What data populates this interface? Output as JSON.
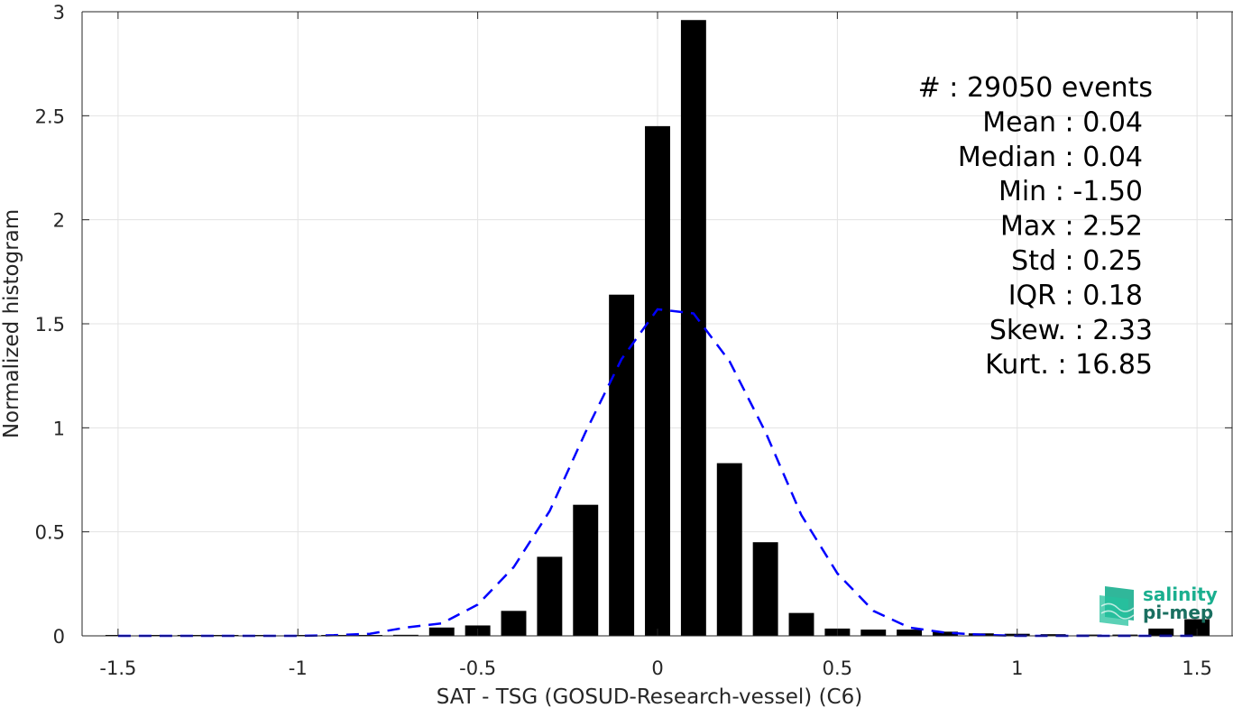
{
  "chart_data": {
    "type": "bar",
    "xlabel": "SAT - TSG (GOSUD-Research-vessel) (C6)",
    "ylabel": "Normalized histogram",
    "xlim": [
      -1.6,
      1.6
    ],
    "ylim": [
      0,
      3
    ],
    "xticks": [
      -1.5,
      -1,
      -0.5,
      0,
      0.5,
      1,
      1.5
    ],
    "xtick_labels": [
      "-1.5",
      "-1",
      "-0.5",
      "0",
      "0.5",
      "1",
      "1.5"
    ],
    "yticks": [
      0,
      0.5,
      1,
      1.5,
      2,
      2.5,
      3
    ],
    "ytick_labels": [
      "0",
      "0.5",
      "1",
      "1.5",
      "2",
      "2.5",
      "3"
    ],
    "grid": true,
    "bar_width": 0.07,
    "series": [
      {
        "type": "bar",
        "color": "#000000",
        "x": [
          -1.5,
          -1.4,
          -1.3,
          -1.2,
          -1.1,
          -1.0,
          -0.9,
          -0.8,
          -0.7,
          -0.6,
          -0.5,
          -0.4,
          -0.3,
          -0.2,
          -0.1,
          0.0,
          0.1,
          0.2,
          0.3,
          0.4,
          0.5,
          0.6,
          0.7,
          0.8,
          0.9,
          1.0,
          1.1,
          1.2,
          1.3,
          1.4,
          1.5
        ],
        "values": [
          0.001,
          0.001,
          0.001,
          0.001,
          0.001,
          0.002,
          0.002,
          0.003,
          0.005,
          0.04,
          0.05,
          0.12,
          0.38,
          0.63,
          1.64,
          2.45,
          2.96,
          0.83,
          0.45,
          0.11,
          0.035,
          0.03,
          0.03,
          0.02,
          0.012,
          0.01,
          0.008,
          0.006,
          0.006,
          0.035,
          0.08
        ]
      },
      {
        "type": "line",
        "style": "dashed",
        "color": "#0000ff",
        "x": [
          -1.5,
          -1.4,
          -1.3,
          -1.2,
          -1.1,
          -1.0,
          -0.9,
          -0.8,
          -0.7,
          -0.6,
          -0.5,
          -0.4,
          -0.3,
          -0.2,
          -0.1,
          0.0,
          0.1,
          0.2,
          0.3,
          0.4,
          0.5,
          0.6,
          0.7,
          0.8,
          0.9,
          1.0,
          1.1,
          1.2,
          1.3,
          1.4,
          1.5
        ],
        "values": [
          0.0,
          0.0,
          0.0,
          0.0,
          0.0,
          0.0,
          0.003,
          0.01,
          0.04,
          0.06,
          0.15,
          0.33,
          0.6,
          0.98,
          1.33,
          1.57,
          1.55,
          1.32,
          0.98,
          0.58,
          0.3,
          0.12,
          0.04,
          0.015,
          0.005,
          0.0,
          0.0,
          0.0,
          0.0,
          0.0,
          0.0
        ]
      }
    ],
    "stats": [
      "#  : 29050 events",
      "Mean : 0.04",
      "Median : 0.04",
      "Min : -1.50",
      "Max : 2.52",
      "Std : 0.25",
      "IQR : 0.18",
      "Skew. : 2.33",
      "Kurt. : 16.85"
    ]
  },
  "logo": {
    "line1": "salinity",
    "line2": "pi-mep",
    "color1": "#1aaf8f",
    "color2": "#1a6f60"
  }
}
